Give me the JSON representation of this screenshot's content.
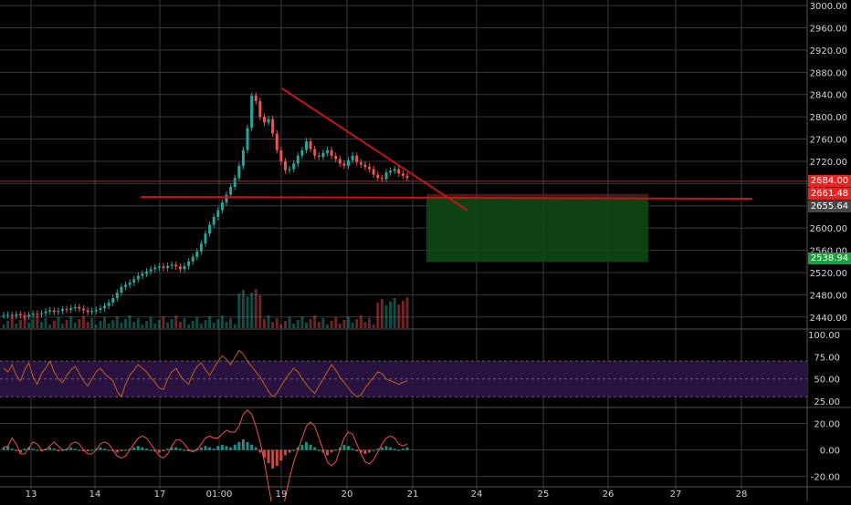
{
  "chart_data": [
    {
      "type": "line",
      "panel": "price",
      "title": "",
      "x_tick_labels": [
        "13",
        "14",
        "17",
        "01:00",
        "19",
        "20",
        "21",
        "24",
        "25",
        "26",
        "27",
        "28"
      ],
      "y_tick_labels": [
        "3000.00",
        "2960.00",
        "2920.00",
        "2880.00",
        "2840.00",
        "2800.00",
        "2760.00",
        "2720.00",
        "2680.00",
        "2640.00",
        "2600.00",
        "2560.00",
        "2520.00",
        "2480.00",
        "2440.00"
      ],
      "ylim": [
        2420,
        3010
      ],
      "series": [
        {
          "values": [
            2443,
            2444,
            2442,
            2445,
            2443,
            2441,
            2444,
            2446,
            2445,
            2447,
            2450,
            2452,
            2449,
            2451,
            2454,
            2453,
            2456,
            2458,
            2455,
            2452,
            2449,
            2451,
            2453,
            2456,
            2460,
            2466,
            2474,
            2484,
            2494,
            2498,
            2502,
            2508,
            2514,
            2518,
            2522,
            2526,
            2529,
            2531,
            2528,
            2532,
            2534,
            2531,
            2526,
            2532,
            2540,
            2548,
            2558,
            2572,
            2590,
            2606,
            2620,
            2632,
            2646,
            2660,
            2674,
            2690,
            2712,
            2740,
            2780,
            2838,
            2828,
            2800,
            2790,
            2796,
            2770,
            2740,
            2720,
            2704,
            2706,
            2716,
            2730,
            2740,
            2756,
            2742,
            2730,
            2728,
            2735,
            2740,
            2730,
            2724,
            2716,
            2712,
            2722,
            2730,
            2718,
            2714,
            2710,
            2706,
            2696,
            2690,
            2688,
            2700,
            2703,
            2706,
            2698,
            2694,
            2690
          ]
        }
      ]
    },
    {
      "type": "line",
      "panel": "oscillator",
      "y_tick_labels": [
        "100.00",
        "75.00",
        "50.00",
        "25.00"
      ],
      "ylim": [
        20,
        105
      ],
      "reference_band": [
        30,
        70
      ],
      "series": [
        {
          "values": [
            62,
            58,
            66,
            54,
            48,
            60,
            68,
            52,
            44,
            56,
            62,
            70,
            58,
            50,
            46,
            54,
            60,
            64,
            56,
            48,
            42,
            50,
            58,
            62,
            56,
            52,
            48,
            36,
            30,
            44,
            54,
            60,
            66,
            62,
            58,
            52,
            46,
            40,
            38,
            50,
            58,
            62,
            54,
            48,
            44,
            56,
            64,
            68,
            60,
            54,
            62,
            70,
            76,
            72,
            66,
            74,
            82,
            78,
            70,
            64,
            58,
            52,
            44,
            36,
            30,
            34,
            42,
            50,
            56,
            62,
            58,
            50,
            44,
            38,
            34,
            42,
            50,
            58,
            66,
            60,
            52,
            46,
            40,
            34,
            30,
            32,
            40,
            46,
            52,
            58,
            56,
            50,
            48,
            46,
            44,
            46,
            48
          ]
        }
      ]
    },
    {
      "type": "bar",
      "panel": "histogram",
      "y_tick_labels": [
        "20.00",
        "0.00",
        "-20.00"
      ],
      "ylim": [
        -25,
        30
      ],
      "series": [
        {
          "values": [
            2,
            3,
            1,
            -1,
            -2,
            1,
            2,
            1,
            0,
            -1,
            1,
            2,
            1,
            -1,
            0,
            1,
            2,
            1,
            0,
            -1,
            -1,
            0,
            1,
            2,
            1,
            0,
            -1,
            -2,
            -1,
            0,
            1,
            2,
            3,
            2,
            1,
            0,
            -1,
            -2,
            -1,
            1,
            2,
            2,
            1,
            0,
            -1,
            0,
            1,
            2,
            3,
            2,
            1,
            3,
            4,
            3,
            2,
            4,
            6,
            8,
            6,
            4,
            2,
            -2,
            -6,
            -10,
            -14,
            -12,
            -8,
            -4,
            -2,
            0,
            2,
            4,
            6,
            4,
            2,
            0,
            -2,
            -4,
            -2,
            0,
            2,
            4,
            3,
            1,
            -1,
            -2,
            -3,
            -2,
            0,
            1,
            2,
            3,
            2,
            1,
            0,
            1,
            2
          ]
        }
      ]
    }
  ],
  "price_tags": {
    "upper": "2684.00",
    "mid": "2661.48",
    "entry": "2655.64",
    "target": "2538.94"
  },
  "colors": {
    "background": "#000000",
    "grid": "#3a3a3a",
    "candle_up": "#26a69a",
    "candle_down": "#ef5350",
    "trendline": "#c2161b",
    "position_zone": "#0e4a14",
    "rsi_band": "#2a1340",
    "rsi_line": "#c2601a",
    "tag_red": "#e82323",
    "tag_grey": "#474747",
    "tag_green": "#1e9e3e"
  }
}
